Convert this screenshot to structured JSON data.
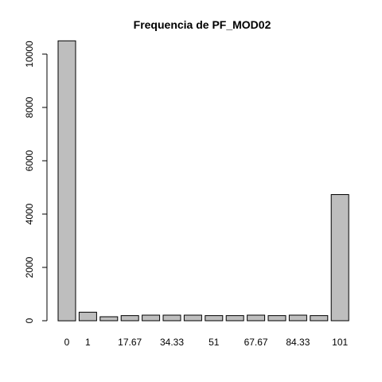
{
  "chart_data": {
    "type": "bar",
    "title": "Frequencia de PF_MOD02",
    "xlabel": "",
    "ylabel": "",
    "ylim": [
      0,
      10500
    ],
    "yticks": [
      0,
      2000,
      4000,
      6000,
      8000,
      10000
    ],
    "bar_color": "#bebebe",
    "categories": [
      "0",
      "1",
      "",
      "17.67",
      "",
      "34.33",
      "",
      "51",
      "",
      "67.67",
      "",
      "84.33",
      "",
      "101"
    ],
    "values": [
      10500,
      320,
      150,
      190,
      210,
      210,
      210,
      190,
      190,
      210,
      190,
      210,
      190,
      4730
    ]
  }
}
